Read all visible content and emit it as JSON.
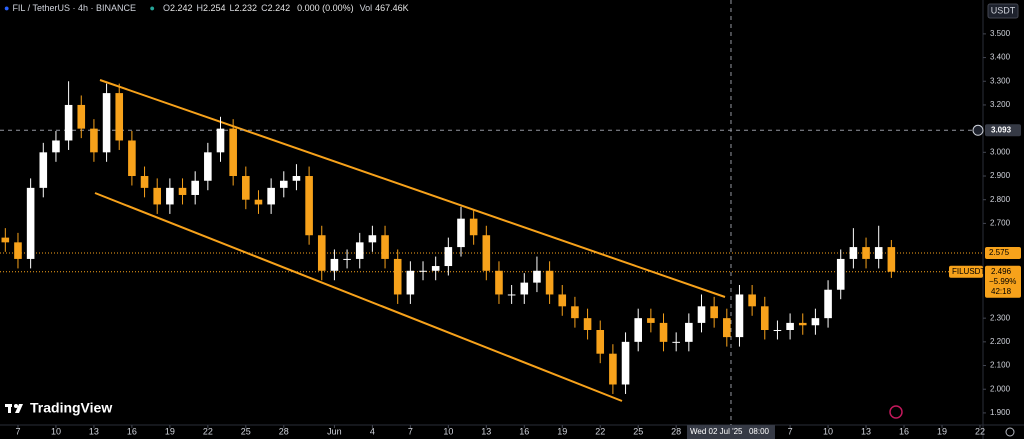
{
  "chart_data": {
    "type": "candlestick",
    "title": "FIL / TetherUS · 4h · BINANCE",
    "ohlc_header": [
      {
        "label": "O",
        "value": "2.242"
      },
      {
        "label": "H",
        "value": "2.254"
      },
      {
        "label": "L",
        "value": "2.232"
      },
      {
        "label": "C",
        "value": "2.242"
      }
    ],
    "change": "0.000 (0.00%)",
    "volume": {
      "label": "Vol",
      "value": "467.46K"
    },
    "currency": "USDT",
    "symbol": "FILUSDT",
    "brand": "TradingView",
    "up_color": "#ffffff",
    "down_color": "#f7a21b",
    "x": [
      6,
      7,
      8,
      9,
      10,
      11,
      12,
      13,
      14,
      15,
      16,
      17,
      18,
      19,
      20,
      21,
      22,
      23,
      24,
      25,
      26,
      27,
      28,
      29,
      30,
      31,
      32,
      33,
      34,
      35,
      36,
      37,
      38,
      39,
      40,
      41,
      42,
      43,
      44,
      45,
      46,
      47,
      48,
      49,
      50,
      51,
      52,
      53,
      54,
      55,
      56,
      57,
      58,
      59,
      60,
      61,
      62,
      63,
      64,
      65,
      66,
      67,
      68,
      69,
      70,
      71,
      72,
      73,
      74,
      75,
      76
    ],
    "open": [
      2.64,
      2.62,
      2.55,
      2.85,
      3.0,
      3.05,
      3.2,
      3.1,
      3.0,
      3.25,
      3.05,
      2.9,
      2.85,
      2.78,
      2.85,
      2.82,
      2.88,
      3.0,
      3.1,
      2.9,
      2.8,
      2.78,
      2.85,
      2.88,
      2.9,
      2.65,
      2.5,
      2.55,
      2.55,
      2.62,
      2.65,
      2.55,
      2.4,
      2.5,
      2.5,
      2.52,
      2.6,
      2.72,
      2.65,
      2.5,
      2.4,
      2.4,
      2.45,
      2.5,
      2.4,
      2.35,
      2.3,
      2.25,
      2.15,
      2.02,
      2.2,
      2.3,
      2.28,
      2.2,
      2.2,
      2.28,
      2.35,
      2.3,
      2.22,
      2.4,
      2.35,
      2.25,
      2.25,
      2.28,
      2.27,
      2.3,
      2.42,
      2.55,
      2.6,
      2.55,
      2.6
    ],
    "high": [
      2.68,
      2.66,
      2.89,
      3.04,
      3.09,
      3.3,
      3.24,
      3.14,
      3.29,
      3.29,
      3.09,
      2.94,
      2.89,
      2.89,
      2.89,
      2.92,
      3.04,
      3.15,
      3.14,
      2.94,
      2.84,
      2.89,
      2.92,
      2.95,
      2.94,
      2.69,
      2.59,
      2.59,
      2.66,
      2.69,
      2.69,
      2.59,
      2.54,
      2.54,
      2.56,
      2.64,
      2.77,
      2.76,
      2.69,
      2.54,
      2.44,
      2.49,
      2.56,
      2.54,
      2.44,
      2.39,
      2.34,
      2.29,
      2.19,
      2.24,
      2.34,
      2.34,
      2.32,
      2.24,
      2.32,
      2.4,
      2.39,
      2.34,
      2.44,
      2.44,
      2.39,
      2.29,
      2.32,
      2.32,
      2.34,
      2.46,
      2.59,
      2.68,
      2.64,
      2.69,
      2.63
    ],
    "low": [
      2.58,
      2.51,
      2.51,
      2.81,
      2.96,
      3.01,
      3.06,
      2.96,
      2.96,
      3.01,
      2.86,
      2.81,
      2.74,
      2.74,
      2.78,
      2.78,
      2.84,
      2.96,
      2.86,
      2.76,
      2.74,
      2.74,
      2.81,
      2.84,
      2.61,
      2.46,
      2.46,
      2.51,
      2.51,
      2.58,
      2.51,
      2.36,
      2.36,
      2.46,
      2.46,
      2.48,
      2.56,
      2.61,
      2.46,
      2.36,
      2.36,
      2.36,
      2.41,
      2.36,
      2.31,
      2.26,
      2.21,
      2.11,
      1.98,
      1.98,
      2.16,
      2.24,
      2.16,
      2.16,
      2.16,
      2.24,
      2.26,
      2.18,
      2.18,
      2.31,
      2.21,
      2.21,
      2.21,
      2.23,
      2.23,
      2.26,
      2.38,
      2.51,
      2.51,
      2.51,
      2.47
    ],
    "close": [
      2.62,
      2.55,
      2.85,
      3.0,
      3.05,
      3.2,
      3.1,
      3.0,
      3.25,
      3.05,
      2.9,
      2.85,
      2.78,
      2.85,
      2.82,
      2.88,
      3.0,
      3.1,
      2.9,
      2.8,
      2.78,
      2.85,
      2.88,
      2.9,
      2.65,
      2.5,
      2.55,
      2.55,
      2.62,
      2.65,
      2.55,
      2.4,
      2.5,
      2.5,
      2.52,
      2.6,
      2.72,
      2.65,
      2.5,
      2.4,
      2.4,
      2.45,
      2.5,
      2.4,
      2.35,
      2.3,
      2.25,
      2.15,
      2.02,
      2.2,
      2.3,
      2.28,
      2.2,
      2.2,
      2.28,
      2.35,
      2.3,
      2.22,
      2.4,
      2.35,
      2.25,
      2.25,
      2.28,
      2.27,
      2.3,
      2.42,
      2.55,
      2.6,
      2.55,
      2.6,
      2.496
    ],
    "xlim": [
      5.58,
      83.24
    ],
    "xticks": [
      {
        "value": 7,
        "label": "7"
      },
      {
        "value": 10,
        "label": "10"
      },
      {
        "value": 13,
        "label": "13"
      },
      {
        "value": 16,
        "label": "16"
      },
      {
        "value": 19,
        "label": "19"
      },
      {
        "value": 22,
        "label": "22"
      },
      {
        "value": 25,
        "label": "25"
      },
      {
        "value": 28,
        "label": "28"
      },
      {
        "value": 32,
        "label": "Jun"
      },
      {
        "value": 35,
        "label": "4"
      },
      {
        "value": 38,
        "label": "7"
      },
      {
        "value": 41,
        "label": "10"
      },
      {
        "value": 44,
        "label": "13"
      },
      {
        "value": 47,
        "label": "16"
      },
      {
        "value": 50,
        "label": "19"
      },
      {
        "value": 53,
        "label": "22"
      },
      {
        "value": 56,
        "label": "25"
      },
      {
        "value": 59,
        "label": "28"
      },
      {
        "value": 68,
        "label": "7"
      },
      {
        "value": 71,
        "label": "10"
      },
      {
        "value": 74,
        "label": "13"
      },
      {
        "value": 77,
        "label": "16"
      },
      {
        "value": 80,
        "label": "19"
      },
      {
        "value": 83,
        "label": "22"
      }
    ],
    "ylim": [
      1.849,
      3.643
    ],
    "yticks": [
      {
        "value": 3.5,
        "label": "3.500"
      },
      {
        "value": 3.4,
        "label": "3.400"
      },
      {
        "value": 3.3,
        "label": "3.300"
      },
      {
        "value": 3.2,
        "label": "3.200"
      },
      {
        "value": 3.0,
        "label": "3.000"
      },
      {
        "value": 2.9,
        "label": "2.900"
      },
      {
        "value": 2.8,
        "label": "2.800"
      },
      {
        "value": 2.7,
        "label": "2.700"
      },
      {
        "value": 2.3,
        "label": "2.300"
      },
      {
        "value": 2.2,
        "label": "2.200"
      },
      {
        "value": 2.1,
        "label": "2.100"
      },
      {
        "value": 2.0,
        "label": "2.000"
      },
      {
        "value": 1.9,
        "label": "1.900"
      }
    ],
    "crosshair": {
      "price": {
        "value": 3.093,
        "label": "3.093"
      },
      "time": 63.33,
      "date_label": "Wed 02 Jul '25",
      "time_label": "08:00"
    },
    "level": {
      "value": 2.575,
      "label": "2.575"
    },
    "last": {
      "value": 2.496,
      "label": "2.496",
      "change": "−5.99%",
      "countdown": "42:18"
    }
  }
}
